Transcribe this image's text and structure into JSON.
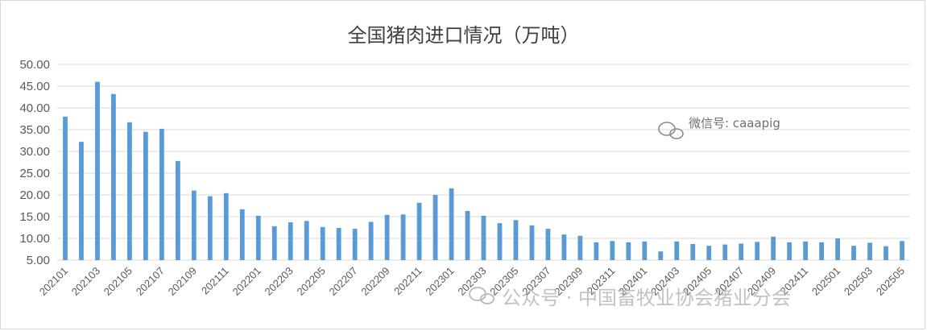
{
  "chart_data": {
    "type": "bar",
    "title": "全国猪肉进口情况（万吨）",
    "xlabel": "",
    "ylabel": "",
    "ylim": [
      5,
      50
    ],
    "yticks": [
      "50.00",
      "45.00",
      "40.00",
      "35.00",
      "30.00",
      "25.00",
      "20.00",
      "15.00",
      "10.00",
      "5.00"
    ],
    "grid": true,
    "legend": "none",
    "bar_color": "#5b9bd5",
    "categories": [
      "202101",
      "202102",
      "202103",
      "202104",
      "202105",
      "202106",
      "202107",
      "202108",
      "202109",
      "202110",
      "202111",
      "202112",
      "202201",
      "202202",
      "202203",
      "202204",
      "202205",
      "202206",
      "202207",
      "202208",
      "202209",
      "202210",
      "202211",
      "202212",
      "202301",
      "202302",
      "202303",
      "202304",
      "202305",
      "202306",
      "202307",
      "202308",
      "202309",
      "202310",
      "202311",
      "202312",
      "202401",
      "202402",
      "202403",
      "202404",
      "202405",
      "202406",
      "202407",
      "202408",
      "202409",
      "202410",
      "202411",
      "202412",
      "202501",
      "202502",
      "202503",
      "202504",
      "202505"
    ],
    "xtick_labels": [
      "202101",
      "202103",
      "202105",
      "202107",
      "202109",
      "202111",
      "202201",
      "202203",
      "202205",
      "202207",
      "202209",
      "202211",
      "202301",
      "202303",
      "202305",
      "202307",
      "202309",
      "202311",
      "202401",
      "202403",
      "202405",
      "202407",
      "202409",
      "202411",
      "202501",
      "202503",
      "202505"
    ],
    "values": [
      38.0,
      32.2,
      46.0,
      43.2,
      36.7,
      34.5,
      35.2,
      27.8,
      21.0,
      19.7,
      20.4,
      16.7,
      15.2,
      12.8,
      13.7,
      14.0,
      12.6,
      12.4,
      12.2,
      13.8,
      15.4,
      15.5,
      18.2,
      20.0,
      21.5,
      16.3,
      15.2,
      13.5,
      14.2,
      13.0,
      12.2,
      10.9,
      10.6,
      9.1,
      9.4,
      9.1,
      9.3,
      7.0,
      9.3,
      8.7,
      8.3,
      8.6,
      8.8,
      9.2,
      10.4,
      9.1,
      9.3,
      9.1,
      10.0,
      8.3,
      9.0,
      8.2,
      9.4
    ]
  },
  "watermarks": {
    "wechat_id": "微信号: caaapig",
    "public_account": "公众号 · 中国畜牧业协会猪业分会",
    "icon": "wechat-icon"
  }
}
